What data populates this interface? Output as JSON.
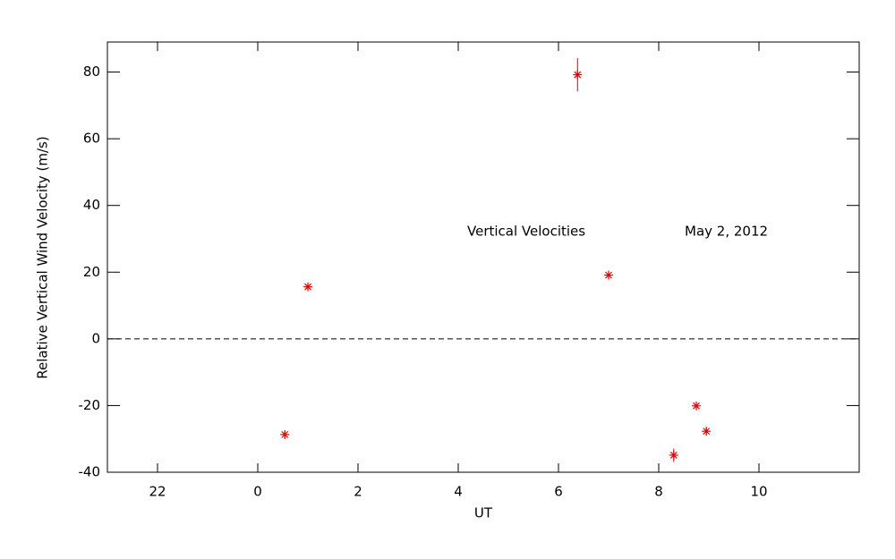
{
  "chart_data": {
    "type": "scatter",
    "x_label": "UT",
    "y_label": "Relative Vertical Wind Velocity (m/s)",
    "annotations": [
      "Vertical Velocities",
      "May 2, 2012"
    ],
    "xlim": [
      -3,
      12
    ],
    "xticks": [
      {
        "value": -2,
        "label": "22"
      },
      0,
      2,
      4,
      6,
      8,
      10
    ],
    "ylim": [
      -40,
      89
    ],
    "yticks": [
      -40,
      -20,
      0,
      20,
      40,
      60,
      80
    ],
    "reference_line": 0,
    "series": [
      {
        "color": "#e00000",
        "x": [
          0.54,
          1.0,
          6.38,
          7.0,
          8.3,
          8.75,
          8.95
        ],
        "values": [
          -28.7,
          15.6,
          79.2,
          19.1,
          -34.9,
          -20.1,
          -27.7
        ],
        "errors": [
          1,
          1,
          5,
          1,
          2,
          1,
          1
        ]
      }
    ]
  }
}
